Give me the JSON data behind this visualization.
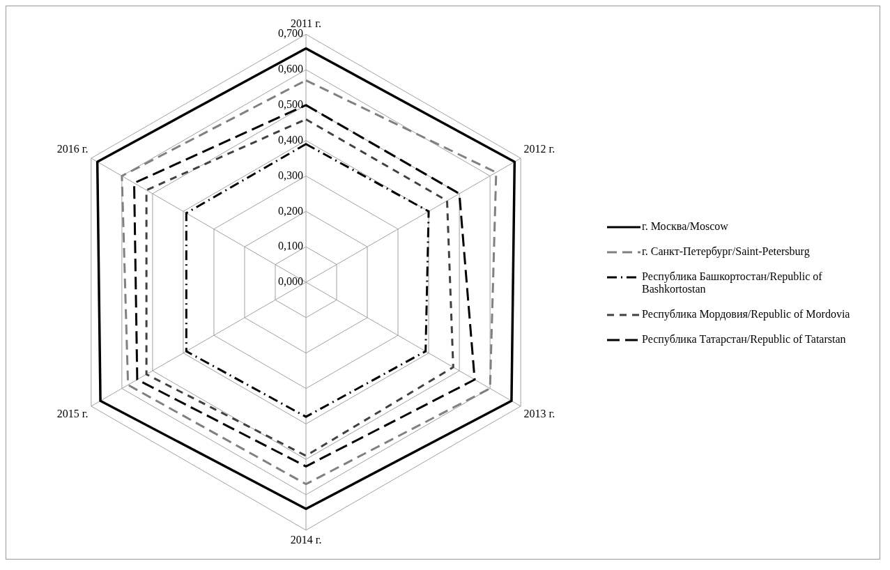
{
  "chart_data": {
    "type": "radar",
    "categories": [
      "2011 г.",
      "2012 г.",
      "2013 г.",
      "2014 г.",
      "2015 г.",
      "2016 г."
    ],
    "series": [
      {
        "name": "г. Москва/Moscow",
        "color": "#000000",
        "line_style": "solid",
        "values": [
          0.66,
          0.68,
          0.67,
          0.64,
          0.67,
          0.68
        ]
      },
      {
        "name": "г. Санкт-Петербург/Saint-Petersburg",
        "color": "#808080",
        "line_style": "dashed",
        "values": [
          0.57,
          0.62,
          0.6,
          0.57,
          0.58,
          0.6
        ]
      },
      {
        "name": "Республика Башкортостан/Republic of Bashkortostan",
        "color": "#000000",
        "line_style": "dashed",
        "values": [
          0.39,
          0.4,
          0.39,
          0.38,
          0.39,
          0.39
        ]
      },
      {
        "name": "Республика Мордовия/Republic of Mordovia",
        "color": "#404040",
        "line_style": "dashed",
        "values": [
          0.46,
          0.46,
          0.48,
          0.49,
          0.52,
          0.52
        ]
      },
      {
        "name": "Республика Татарстан/Republic of Tatarstan",
        "color": "#000000",
        "line_style": "dashed",
        "values": [
          0.5,
          0.5,
          0.55,
          0.52,
          0.55,
          0.56
        ]
      }
    ],
    "ylim": [
      0,
      0.7
    ],
    "yticks": [
      {
        "value": 0,
        "label": "0,000"
      },
      {
        "value": 0.1,
        "label": "0,100"
      },
      {
        "value": 0.2,
        "label": "0,200"
      },
      {
        "value": 0.3,
        "label": "0,300"
      },
      {
        "value": 0.4,
        "label": "0,400"
      },
      {
        "value": 0.5,
        "label": "0,500"
      },
      {
        "value": 0.6,
        "label": "0,600"
      },
      {
        "value": 0.7,
        "label": "0,700"
      }
    ],
    "grid": true,
    "legend": "right",
    "marker": "none"
  }
}
